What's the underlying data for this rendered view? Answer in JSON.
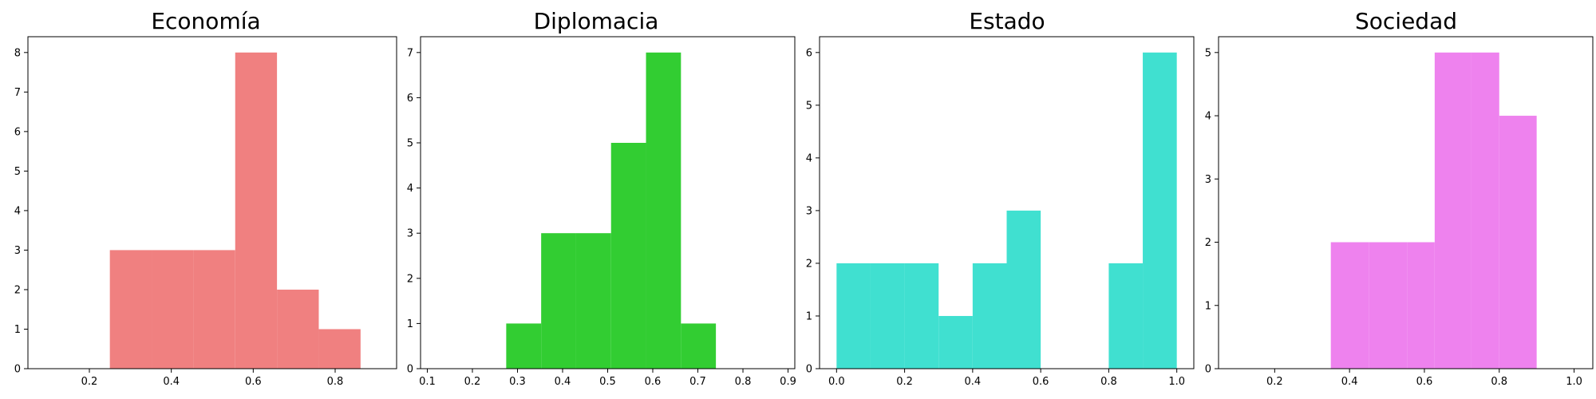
{
  "chart_data": [
    {
      "type": "bar",
      "title": "Economía",
      "color": "#f08080",
      "bins": [
        {
          "x0": 0.25,
          "x1": 0.352,
          "count": 3
        },
        {
          "x0": 0.352,
          "x1": 0.454,
          "count": 3
        },
        {
          "x0": 0.454,
          "x1": 0.556,
          "count": 3
        },
        {
          "x0": 0.556,
          "x1": 0.658,
          "count": 8
        },
        {
          "x0": 0.658,
          "x1": 0.76,
          "count": 2
        },
        {
          "x0": 0.76,
          "x1": 0.862,
          "count": 1
        }
      ],
      "xlim": [
        0.05,
        0.95
      ],
      "ylim": [
        0,
        8.4
      ],
      "xticks": [
        0.2,
        0.4,
        0.6,
        0.8
      ],
      "xtick_labels": [
        "0.2",
        "0.4",
        "0.6",
        "0.8"
      ],
      "yticks": [
        0,
        1,
        2,
        3,
        4,
        5,
        6,
        7,
        8
      ],
      "ytick_labels": [
        "0",
        "1",
        "2",
        "3",
        "4",
        "5",
        "6",
        "7",
        "8"
      ]
    },
    {
      "type": "bar",
      "title": "Diplomacia",
      "color": "#32cd32",
      "bins": [
        {
          "x0": 0.275,
          "x1": 0.3525,
          "count": 1
        },
        {
          "x0": 0.3525,
          "x1": 0.43,
          "count": 3
        },
        {
          "x0": 0.43,
          "x1": 0.5075,
          "count": 3
        },
        {
          "x0": 0.5075,
          "x1": 0.585,
          "count": 5
        },
        {
          "x0": 0.585,
          "x1": 0.6625,
          "count": 7
        },
        {
          "x0": 0.6625,
          "x1": 0.74,
          "count": 1
        }
      ],
      "xlim": [
        0.085,
        0.915
      ],
      "ylim": [
        0,
        7.35
      ],
      "xticks": [
        0.1,
        0.2,
        0.3,
        0.4,
        0.5,
        0.6,
        0.7,
        0.8,
        0.9
      ],
      "xtick_labels": [
        "0.1",
        "0.2",
        "0.3",
        "0.4",
        "0.5",
        "0.6",
        "0.7",
        "0.8",
        "0.9"
      ],
      "yticks": [
        0,
        1,
        2,
        3,
        4,
        5,
        6,
        7
      ],
      "ytick_labels": [
        "0",
        "1",
        "2",
        "3",
        "4",
        "5",
        "6",
        "7"
      ]
    },
    {
      "type": "bar",
      "title": "Estado",
      "color": "#40e0d0",
      "bins": [
        {
          "x0": 0.0,
          "x1": 0.1,
          "count": 2
        },
        {
          "x0": 0.1,
          "x1": 0.2,
          "count": 2
        },
        {
          "x0": 0.2,
          "x1": 0.3,
          "count": 2
        },
        {
          "x0": 0.3,
          "x1": 0.4,
          "count": 1
        },
        {
          "x0": 0.4,
          "x1": 0.5,
          "count": 2
        },
        {
          "x0": 0.5,
          "x1": 0.6,
          "count": 3
        },
        {
          "x0": 0.6,
          "x1": 0.7,
          "count": 0
        },
        {
          "x0": 0.7,
          "x1": 0.8,
          "count": 0
        },
        {
          "x0": 0.8,
          "x1": 0.9,
          "count": 2
        },
        {
          "x0": 0.9,
          "x1": 1.0,
          "count": 6
        }
      ],
      "xlim": [
        -0.05,
        1.05
      ],
      "ylim": [
        0,
        6.3
      ],
      "xticks": [
        0.0,
        0.2,
        0.4,
        0.6,
        0.8,
        1.0
      ],
      "xtick_labels": [
        "0.0",
        "0.2",
        "0.4",
        "0.6",
        "0.8",
        "1.0"
      ],
      "yticks": [
        0,
        1,
        2,
        3,
        4,
        5,
        6
      ],
      "ytick_labels": [
        "0",
        "1",
        "2",
        "3",
        "4",
        "5",
        "6"
      ]
    },
    {
      "type": "bar",
      "title": "Sociedad",
      "color": "#ee82ee",
      "bins": [
        {
          "x0": 0.35,
          "x1": 0.4525,
          "count": 2
        },
        {
          "x0": 0.4525,
          "x1": 0.555,
          "count": 2
        },
        {
          "x0": 0.555,
          "x1": 0.6275,
          "count": 2
        },
        {
          "x0": 0.6275,
          "x1": 0.725,
          "count": 5
        },
        {
          "x0": 0.725,
          "x1": 0.8,
          "count": 5
        },
        {
          "x0": 0.8,
          "x1": 0.9,
          "count": 4
        }
      ],
      "xlim": [
        0.05,
        1.05
      ],
      "ylim": [
        0,
        5.25
      ],
      "xticks": [
        0.2,
        0.4,
        0.6,
        0.8,
        1.0
      ],
      "xtick_labels": [
        "0.2",
        "0.4",
        "0.6",
        "0.8",
        "1.0"
      ],
      "yticks": [
        0,
        1,
        2,
        3,
        4,
        5
      ],
      "ytick_labels": [
        "0",
        "1",
        "2",
        "3",
        "4",
        "5"
      ]
    }
  ]
}
